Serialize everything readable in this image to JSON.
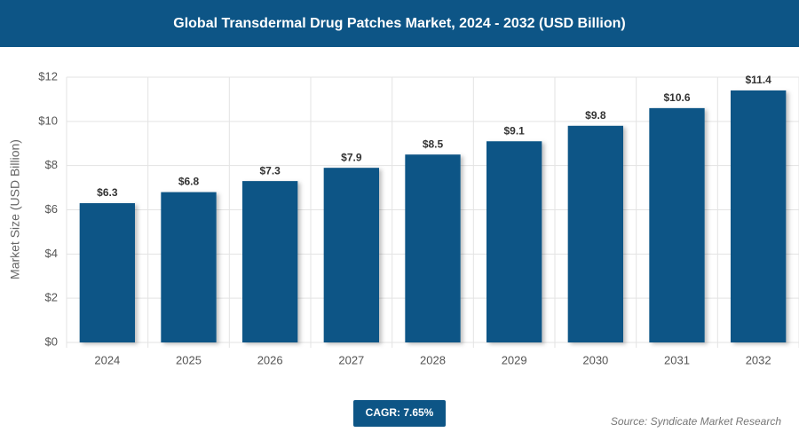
{
  "chart_data": {
    "type": "bar",
    "title": "Global Transdermal Drug Patches Market, 2024 - 2032 (USD Billion)",
    "y_label": "Market Size (USD Billion)",
    "categories": [
      "2024",
      "2025",
      "2026",
      "2027",
      "2028",
      "2029",
      "2030",
      "2031",
      "2032"
    ],
    "values": [
      6.3,
      6.8,
      7.3,
      7.9,
      8.5,
      9.1,
      9.8,
      10.6,
      11.4
    ],
    "value_labels": [
      "$6.3",
      "$6.8",
      "$7.3",
      "$7.9",
      "$8.5",
      "$9.1",
      "$9.8",
      "$10.6",
      "$11.4"
    ],
    "color": "#0d5586",
    "ylim": [
      0,
      12
    ],
    "yticks": [
      {
        "value": 0,
        "label": "$0"
      },
      {
        "value": 2,
        "label": "$2"
      },
      {
        "value": 4,
        "label": "$4"
      },
      {
        "value": 6,
        "label": "$6"
      },
      {
        "value": 8,
        "label": "$8"
      },
      {
        "value": 10,
        "label": "$10"
      },
      {
        "value": 12,
        "label": "$12"
      }
    ],
    "grid": true,
    "cagr": "CAGR: 7.65%",
    "source": "Source: Syndicate Market Research"
  }
}
